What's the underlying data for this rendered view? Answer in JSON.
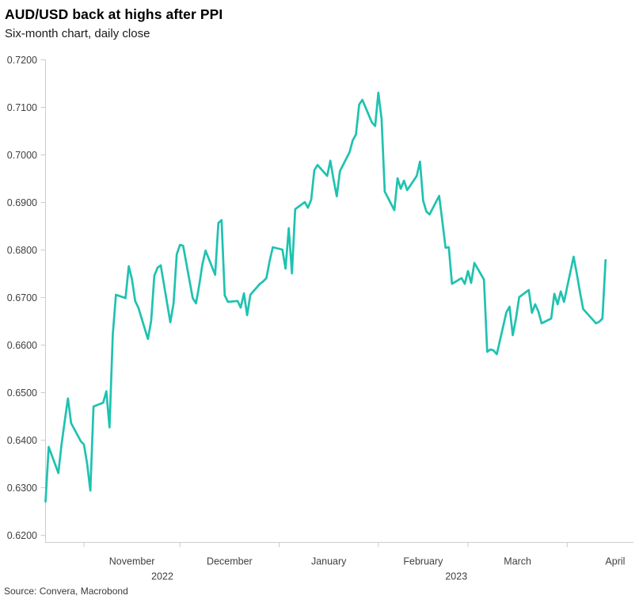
{
  "header": {
    "title": "AUD/USD back at highs after PPI",
    "subtitle": "Six-month chart, daily close"
  },
  "footer": {
    "source": "Source: Convera, Macrobond"
  },
  "chart_data": {
    "type": "line",
    "title": "AUD/USD back at highs after PPI",
    "subtitle": "Six-month chart, daily close",
    "series_name": "AUD/USD daily close",
    "source": "Source: Convera, Macrobond",
    "grid": false,
    "legend": false,
    "line_color": "#1fc2b0",
    "axis_color": "#cccccc",
    "label_color": "#404040",
    "ylim": [
      0.62,
      0.72
    ],
    "y_tick_labels": [
      "0.6200",
      "0.6300",
      "0.6400",
      "0.6500",
      "0.6600",
      "0.6700",
      "0.6800",
      "0.6900",
      "0.7000",
      "0.7100",
      "0.7200"
    ],
    "x_range": [
      "2022-10-20",
      "2023-04-13"
    ],
    "x_month_ticks": [
      {
        "date": "2022-11-01",
        "label": "November"
      },
      {
        "date": "2022-12-01",
        "label": "December"
      },
      {
        "date": "2023-01-01",
        "label": "January"
      },
      {
        "date": "2023-02-01",
        "label": "February"
      },
      {
        "date": "2023-03-01",
        "label": "March"
      },
      {
        "date": "2023-04-01",
        "label": "April"
      },
      {
        "date": "2023-05-01",
        "label": ""
      }
    ],
    "x_year_labels": [
      {
        "label": "2022",
        "from": "2022-10-20",
        "to": "2023-01-01"
      },
      {
        "label": "2023",
        "from": "2023-01-01",
        "to": "2023-04-30"
      }
    ],
    "points": [
      [
        "2022-10-20",
        0.627
      ],
      [
        "2022-10-21",
        0.6385
      ],
      [
        "2022-10-24",
        0.633
      ],
      [
        "2022-10-25",
        0.639
      ],
      [
        "2022-10-26",
        0.644
      ],
      [
        "2022-10-27",
        0.6487
      ],
      [
        "2022-10-28",
        0.6435
      ],
      [
        "2022-10-31",
        0.6397
      ],
      [
        "2022-11-01",
        0.639
      ],
      [
        "2022-11-02",
        0.635
      ],
      [
        "2022-11-03",
        0.6293
      ],
      [
        "2022-11-04",
        0.647
      ],
      [
        "2022-11-07",
        0.6478
      ],
      [
        "2022-11-08",
        0.6502
      ],
      [
        "2022-11-09",
        0.6426
      ],
      [
        "2022-11-10",
        0.662
      ],
      [
        "2022-11-11",
        0.6705
      ],
      [
        "2022-11-14",
        0.6698
      ],
      [
        "2022-11-15",
        0.6765
      ],
      [
        "2022-11-16",
        0.6738
      ],
      [
        "2022-11-17",
        0.6692
      ],
      [
        "2022-11-18",
        0.6678
      ],
      [
        "2022-11-21",
        0.6612
      ],
      [
        "2022-11-22",
        0.665
      ],
      [
        "2022-11-23",
        0.6745
      ],
      [
        "2022-11-24",
        0.6762
      ],
      [
        "2022-11-25",
        0.6767
      ],
      [
        "2022-11-28",
        0.6647
      ],
      [
        "2022-11-29",
        0.6687
      ],
      [
        "2022-11-30",
        0.679
      ],
      [
        "2022-12-01",
        0.681
      ],
      [
        "2022-12-02",
        0.6808
      ],
      [
        "2022-12-05",
        0.6698
      ],
      [
        "2022-12-06",
        0.6687
      ],
      [
        "2022-12-07",
        0.6724
      ],
      [
        "2022-12-08",
        0.6768
      ],
      [
        "2022-12-09",
        0.6798
      ],
      [
        "2022-12-12",
        0.6747
      ],
      [
        "2022-12-13",
        0.6856
      ],
      [
        "2022-12-14",
        0.6862
      ],
      [
        "2022-12-15",
        0.6704
      ],
      [
        "2022-12-16",
        0.669
      ],
      [
        "2022-12-19",
        0.6692
      ],
      [
        "2022-12-20",
        0.6678
      ],
      [
        "2022-12-21",
        0.6708
      ],
      [
        "2022-12-22",
        0.6662
      ],
      [
        "2022-12-23",
        0.6705
      ],
      [
        "2022-12-26",
        0.6728
      ],
      [
        "2022-12-27",
        0.6733
      ],
      [
        "2022-12-28",
        0.674
      ],
      [
        "2022-12-29",
        0.6775
      ],
      [
        "2022-12-30",
        0.6805
      ],
      [
        "2023-01-02",
        0.68
      ],
      [
        "2023-01-03",
        0.676
      ],
      [
        "2023-01-04",
        0.6845
      ],
      [
        "2023-01-05",
        0.675
      ],
      [
        "2023-01-06",
        0.6885
      ],
      [
        "2023-01-09",
        0.69
      ],
      [
        "2023-01-10",
        0.6888
      ],
      [
        "2023-01-11",
        0.6905
      ],
      [
        "2023-01-12",
        0.6967
      ],
      [
        "2023-01-13",
        0.6978
      ],
      [
        "2023-01-16",
        0.6955
      ],
      [
        "2023-01-17",
        0.6987
      ],
      [
        "2023-01-18",
        0.6947
      ],
      [
        "2023-01-19",
        0.6912
      ],
      [
        "2023-01-20",
        0.6965
      ],
      [
        "2023-01-23",
        0.7005
      ],
      [
        "2023-01-24",
        0.703
      ],
      [
        "2023-01-25",
        0.7042
      ],
      [
        "2023-01-26",
        0.7105
      ],
      [
        "2023-01-27",
        0.7115
      ],
      [
        "2023-01-30",
        0.7067
      ],
      [
        "2023-01-31",
        0.706
      ],
      [
        "2023-02-01",
        0.713
      ],
      [
        "2023-02-02",
        0.7075
      ],
      [
        "2023-02-03",
        0.6922
      ],
      [
        "2023-02-06",
        0.6883
      ],
      [
        "2023-02-07",
        0.695
      ],
      [
        "2023-02-08",
        0.6928
      ],
      [
        "2023-02-09",
        0.6945
      ],
      [
        "2023-02-10",
        0.6925
      ],
      [
        "2023-02-13",
        0.6955
      ],
      [
        "2023-02-14",
        0.6985
      ],
      [
        "2023-02-15",
        0.6903
      ],
      [
        "2023-02-16",
        0.688
      ],
      [
        "2023-02-17",
        0.6874
      ],
      [
        "2023-02-20",
        0.6913
      ],
      [
        "2023-02-21",
        0.6859
      ],
      [
        "2023-02-22",
        0.6804
      ],
      [
        "2023-02-23",
        0.6805
      ],
      [
        "2023-02-24",
        0.6728
      ],
      [
        "2023-02-27",
        0.674
      ],
      [
        "2023-02-28",
        0.6728
      ],
      [
        "2023-03-01",
        0.6755
      ],
      [
        "2023-03-02",
        0.673
      ],
      [
        "2023-03-03",
        0.6772
      ],
      [
        "2023-03-06",
        0.6737
      ],
      [
        "2023-03-07",
        0.6585
      ],
      [
        "2023-03-08",
        0.659
      ],
      [
        "2023-03-09",
        0.6588
      ],
      [
        "2023-03-10",
        0.658
      ],
      [
        "2023-03-13",
        0.6668
      ],
      [
        "2023-03-14",
        0.668
      ],
      [
        "2023-03-15",
        0.662
      ],
      [
        "2023-03-16",
        0.6655
      ],
      [
        "2023-03-17",
        0.67
      ],
      [
        "2023-03-20",
        0.6715
      ],
      [
        "2023-03-21",
        0.6667
      ],
      [
        "2023-03-22",
        0.6685
      ],
      [
        "2023-03-23",
        0.667
      ],
      [
        "2023-03-24",
        0.6645
      ],
      [
        "2023-03-27",
        0.6655
      ],
      [
        "2023-03-28",
        0.6707
      ],
      [
        "2023-03-29",
        0.6685
      ],
      [
        "2023-03-30",
        0.6712
      ],
      [
        "2023-03-31",
        0.669
      ],
      [
        "2023-04-03",
        0.6785
      ],
      [
        "2023-04-04",
        0.675
      ],
      [
        "2023-04-05",
        0.671
      ],
      [
        "2023-04-06",
        0.6675
      ],
      [
        "2023-04-10",
        0.6645
      ],
      [
        "2023-04-11",
        0.6648
      ],
      [
        "2023-04-12",
        0.6655
      ],
      [
        "2023-04-13",
        0.6778
      ]
    ]
  }
}
